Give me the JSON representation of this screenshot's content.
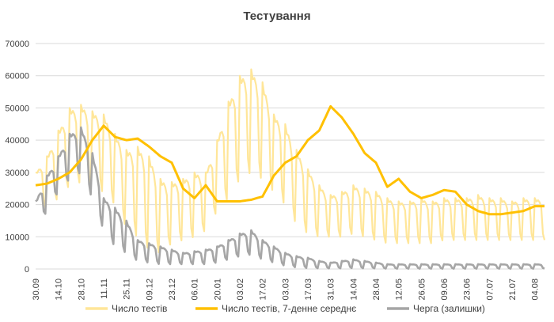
{
  "chart_data": {
    "type": "line",
    "title": "Тестування",
    "xlabel": "",
    "ylabel": "",
    "ylim": [
      0,
      70000
    ],
    "yticks": [
      0,
      10000,
      20000,
      30000,
      40000,
      50000,
      60000,
      70000
    ],
    "ytick_labels": [
      "0",
      "10000",
      "20000",
      "30000",
      "40000",
      "50000",
      "60000",
      "70000"
    ],
    "date_range": [
      "2020-09-30",
      "2021-08-10"
    ],
    "xtick_labels": [
      "30.09",
      "14.10",
      "28.10",
      "11.11",
      "25.11",
      "09.12",
      "23.12",
      "06.01",
      "20.01",
      "03.02",
      "17.02",
      "03.03",
      "17.03",
      "31.03",
      "14.04",
      "28.04",
      "12.05",
      "26.05",
      "09.06",
      "23.06",
      "07.07",
      "21.07",
      "04.08"
    ],
    "grid": true,
    "legend_position": "bottom",
    "series": [
      {
        "name": "Число тестів",
        "color": "#ffe699",
        "weekly_peaks": [
          30000,
          35000,
          43000,
          50000,
          51000,
          49000,
          48000,
          42000,
          37000,
          38000,
          35000,
          28000,
          27000,
          28000,
          30000,
          30000,
          40000,
          52000,
          60000,
          62000,
          58000,
          48000,
          45000,
          37000,
          31000,
          26000,
          23000,
          24000,
          26000,
          25000,
          24000,
          22000,
          21000,
          21000,
          22000,
          21000,
          22000,
          22000,
          22000,
          23000,
          22000,
          22000,
          21000,
          22000,
          22000
        ],
        "weekly_troughs": [
          20000,
          19000,
          22000,
          26000,
          27000,
          25000,
          24000,
          20000,
          13000,
          10000,
          6000,
          5000,
          8000,
          9000,
          10000,
          12000,
          18000,
          22000,
          28000,
          30000,
          28000,
          24000,
          20000,
          14000,
          11000,
          10000,
          10000,
          10000,
          11000,
          10000,
          9000,
          8000,
          8000,
          8000,
          8000,
          8000,
          9000,
          9000,
          9000,
          9000,
          9000,
          9000,
          9000,
          9000,
          9000
        ]
      },
      {
        "name": "Число тестів, 7-денне середнє",
        "color": "#ffc000",
        "values": [
          26000,
          26500,
          28000,
          30000,
          34000,
          40000,
          44500,
          41000,
          40000,
          40500,
          38000,
          35000,
          33000,
          25000,
          22000,
          26000,
          21000,
          21000,
          21000,
          21500,
          22500,
          29000,
          33000,
          35000,
          40000,
          43000,
          50500,
          47000,
          42000,
          36000,
          33000,
          25500,
          28000,
          24000,
          22000,
          23000,
          24500,
          24000,
          20000,
          18000,
          17000,
          17000,
          17500,
          18000,
          19500
        ]
      },
      {
        "name": "Черга (залишки)",
        "color": "#a6a6a6",
        "weekly_peaks": [
          21000,
          29000,
          35000,
          42000,
          44000,
          36000,
          22000,
          19000,
          15000,
          9000,
          8000,
          7000,
          6000,
          5000,
          5500,
          6000,
          7000,
          9000,
          11000,
          12000,
          9000,
          7000,
          5000,
          4000,
          3500,
          2500,
          2000,
          2500,
          3000,
          2500,
          2000,
          1500,
          1500,
          1500,
          1500,
          1500,
          1500,
          1500,
          1500,
          1500,
          1500,
          1500,
          1500,
          1500,
          1500
        ],
        "weekly_troughs": [
          12000,
          18000,
          24000,
          28000,
          30000,
          22000,
          12000,
          7000,
          5000,
          2500,
          2000,
          1500,
          1500,
          1500,
          1500,
          1500,
          2000,
          3000,
          4000,
          4500,
          3000,
          2000,
          1000,
          500,
          300,
          200,
          200,
          200,
          300,
          200,
          200,
          100,
          100,
          100,
          100,
          100,
          100,
          100,
          100,
          100,
          100,
          100,
          100,
          100,
          100
        ]
      }
    ]
  }
}
